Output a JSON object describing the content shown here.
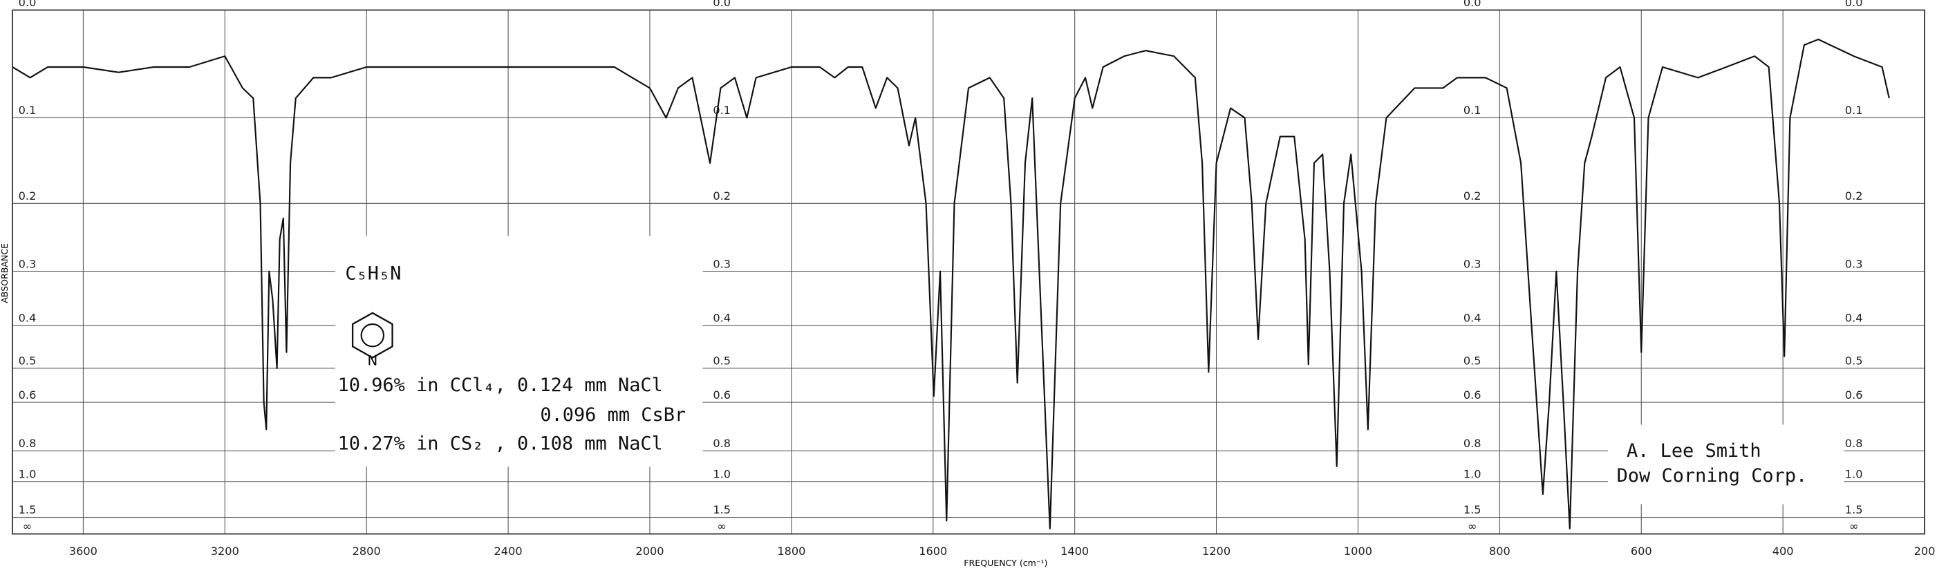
{
  "chart_data": {
    "type": "line",
    "ylabel": "ABSORBANCE",
    "xlabel": "FREQUENCY (cm⁻¹)",
    "yscale": "absorbance",
    "xscale": {
      "break": 2000,
      "ratio": 2
    },
    "color": "#111111",
    "grid": true,
    "xlim": [
      3800,
      200
    ],
    "xticks": [
      3600,
      3200,
      2800,
      2400,
      2000,
      1800,
      1600,
      1400,
      1200,
      1000,
      800,
      600,
      400,
      200
    ],
    "ylim": [
      0,
      "Infinity"
    ],
    "yticks": [
      {
        "value": 0,
        "label": "0.0"
      },
      0.1,
      0.2,
      0.3,
      0.4,
      0.5,
      0.6,
      0.8,
      {
        "value": 1,
        "label": "1.0"
      },
      1.5,
      {
        "value": "Infinity",
        "label": "∞"
      }
    ],
    "x": [
      3800,
      3750,
      3700,
      3600,
      3500,
      3400,
      3300,
      3200,
      3150,
      3120,
      3100,
      3090,
      3083,
      3075,
      3065,
      3053,
      3045,
      3035,
      3026,
      3015,
      3000,
      2950,
      2900,
      2800,
      2700,
      2600,
      2500,
      2400,
      2300,
      2200,
      2100,
      2050,
      2000,
      1977,
      1960,
      1940,
      1915,
      1900,
      1880,
      1863,
      1850,
      1800,
      1760,
      1739,
      1720,
      1700,
      1681,
      1665,
      1650,
      1634,
      1625,
      1610,
      1599,
      1590,
      1581,
      1570,
      1550,
      1520,
      1500,
      1490,
      1481,
      1470,
      1460,
      1450,
      1435,
      1420,
      1400,
      1385,
      1375,
      1360,
      1330,
      1300,
      1260,
      1230,
      1220,
      1211,
      1200,
      1180,
      1160,
      1150,
      1141,
      1130,
      1110,
      1090,
      1075,
      1070,
      1062,
      1050,
      1040,
      1030,
      1020,
      1010,
      995,
      986,
      975,
      960,
      920,
      880,
      860,
      820,
      790,
      770,
      755,
      739,
      730,
      720,
      710,
      701,
      690,
      680,
      670,
      650,
      630,
      610,
      600,
      590,
      570,
      520,
      480,
      440,
      420,
      405,
      398,
      390,
      370,
      350,
      300,
      260,
      250
    ],
    "values": [
      0.05,
      0.06,
      0.05,
      0.05,
      0.055,
      0.05,
      0.05,
      0.04,
      0.07,
      0.08,
      0.2,
      0.6,
      0.7,
      0.3,
      0.35,
      0.5,
      0.25,
      0.22,
      0.46,
      0.15,
      0.08,
      0.06,
      0.06,
      0.05,
      0.05,
      0.05,
      0.05,
      0.05,
      0.05,
      0.05,
      0.05,
      0.06,
      0.07,
      0.1,
      0.07,
      0.06,
      0.15,
      0.07,
      0.06,
      0.1,
      0.06,
      0.05,
      0.05,
      0.06,
      0.05,
      0.05,
      0.09,
      0.06,
      0.07,
      0.13,
      0.1,
      0.2,
      0.58,
      0.3,
      1.6,
      0.2,
      0.07,
      0.06,
      0.08,
      0.2,
      0.54,
      0.15,
      0.08,
      0.3,
      2.0,
      0.2,
      0.08,
      0.06,
      0.09,
      0.05,
      0.04,
      0.035,
      0.04,
      0.06,
      0.15,
      0.51,
      0.15,
      0.09,
      0.1,
      0.2,
      0.43,
      0.2,
      0.12,
      0.12,
      0.25,
      0.49,
      0.15,
      0.14,
      0.3,
      0.89,
      0.2,
      0.14,
      0.3,
      0.7,
      0.2,
      0.1,
      0.07,
      0.07,
      0.06,
      0.06,
      0.07,
      0.15,
      0.4,
      1.12,
      0.6,
      0.3,
      0.6,
      2.0,
      0.3,
      0.15,
      0.12,
      0.06,
      0.05,
      0.1,
      0.46,
      0.1,
      0.05,
      0.06,
      0.05,
      0.04,
      0.05,
      0.2,
      0.47,
      0.1,
      0.03,
      0.025,
      0.04,
      0.05,
      0.08
    ],
    "annotations": {
      "formula": "C₅H₅N",
      "ring_atom": "N",
      "line1": "10.96% in CCl₄, 0.124 mm NaCl",
      "line2": "0.096 mm CsBr",
      "line3": "10.27% in CS₂ , 0.108 mm NaCl",
      "author": "A. Lee Smith",
      "affiliation": "Dow Corning Corp."
    }
  }
}
